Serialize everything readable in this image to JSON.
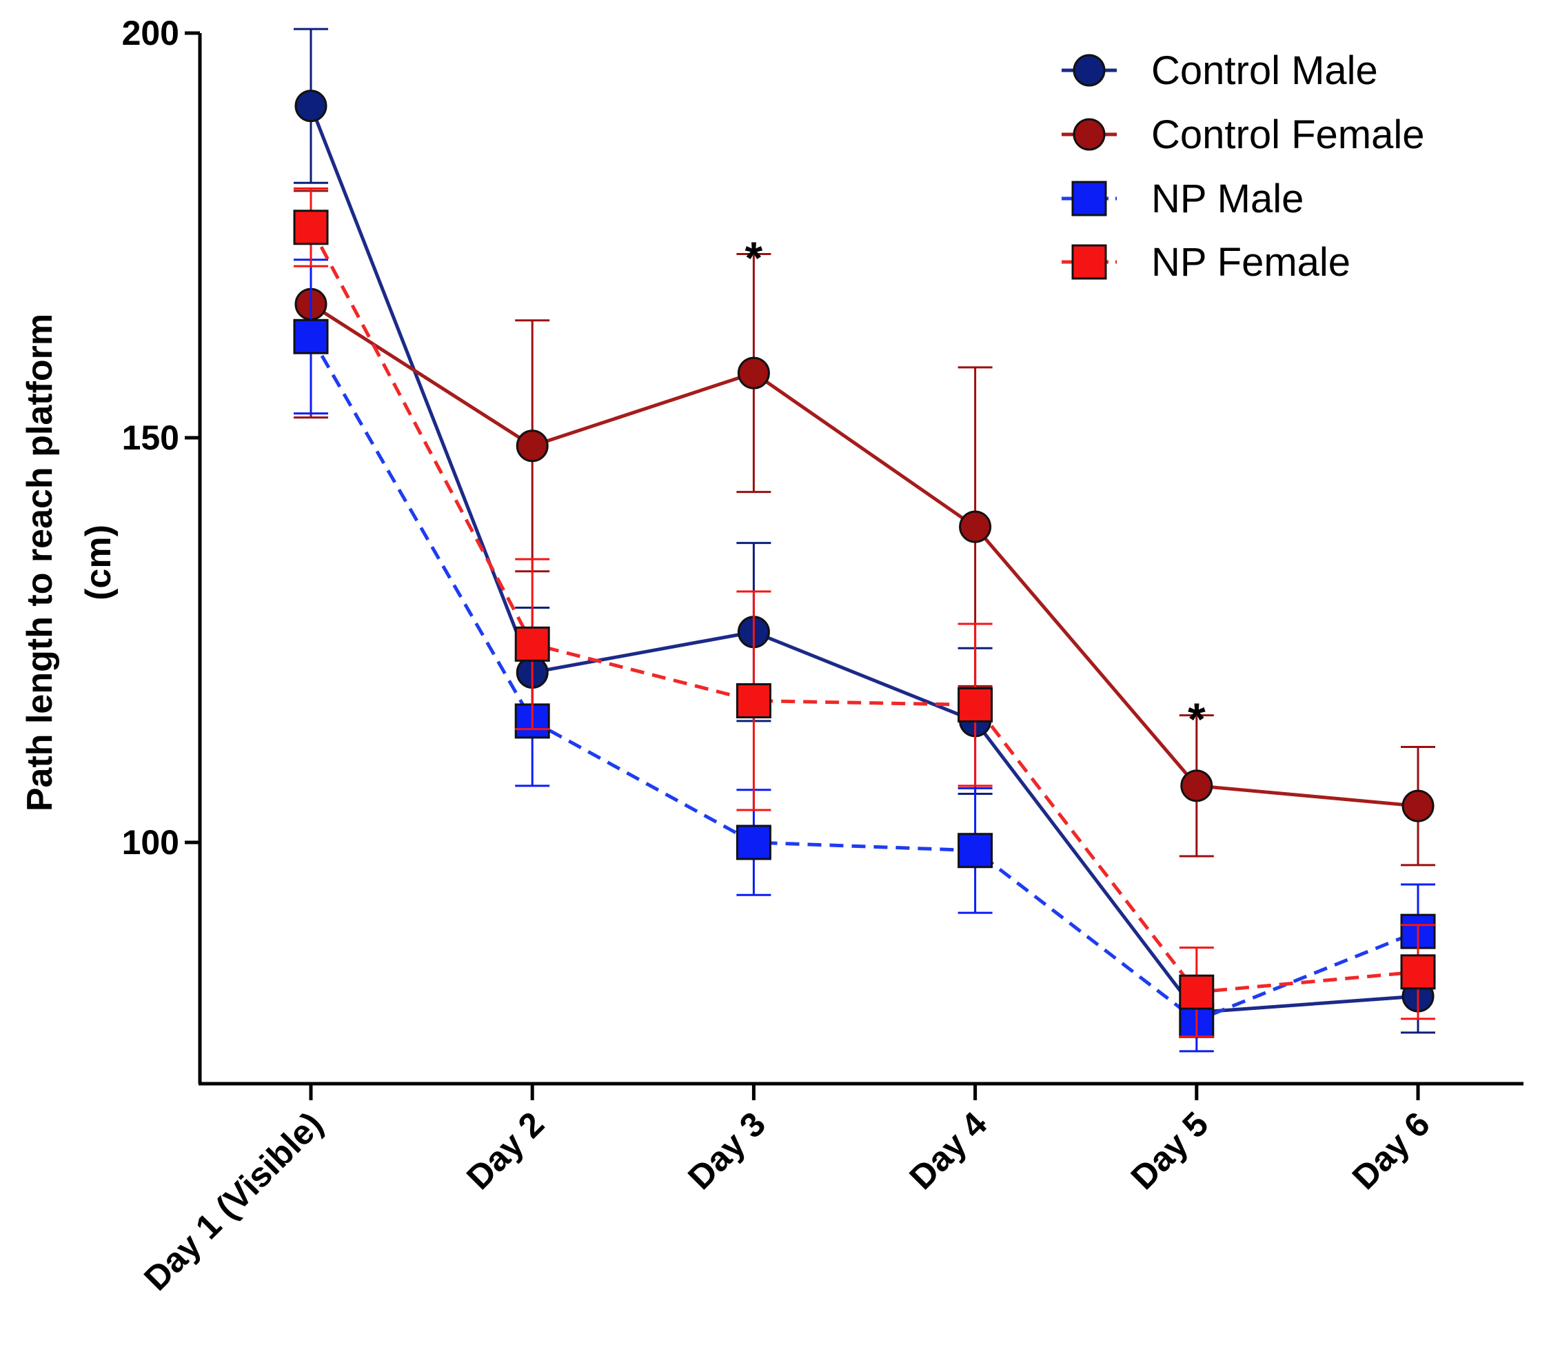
{
  "chart_data": {
    "type": "line",
    "title": "",
    "xlabel": "",
    "ylabel": [
      "Path length to reach platform",
      "(cm)"
    ],
    "categories": [
      "Day 1 (Visible)",
      "Day 2",
      "Day 3",
      "Day 4",
      "Day 5",
      "Day 6"
    ],
    "ylim": [
      70,
      200
    ],
    "yticks": [
      100,
      150,
      200
    ],
    "grid": false,
    "legend_position": "top-right",
    "series": [
      {
        "name": "Control Male",
        "values": [
          191,
          121,
          126,
          115,
          79,
          81
        ],
        "errors": [
          9.5,
          8,
          11,
          9,
          3,
          4.5
        ],
        "color": "#0c1f7a",
        "line_color": "#1c2a88",
        "dash": "solid",
        "marker": "circle"
      },
      {
        "name": "Control Female",
        "values": [
          166.5,
          149,
          158,
          139,
          107,
          104.5
        ],
        "errors": [
          14,
          15.5,
          14.7,
          19.7,
          8.7,
          7.3
        ],
        "color": "#9b1010",
        "line_color": "#a51c1c",
        "dash": "solid",
        "marker": "circle"
      },
      {
        "name": "NP Male",
        "values": [
          162.5,
          115,
          100,
          99,
          78,
          89
        ],
        "errors": [
          9.5,
          8,
          6.5,
          7.7,
          3.8,
          5.8
        ],
        "color": "#0a1ef5",
        "line_color": "#1e3cf0",
        "dash": "dashed",
        "marker": "square"
      },
      {
        "name": "NP Female",
        "values": [
          176,
          124.5,
          117.5,
          117,
          81.5,
          84
        ],
        "errors": [
          4.8,
          10.5,
          13.5,
          10,
          5.5,
          5.8
        ],
        "color": "#f51414",
        "line_color": "#f02828",
        "dash": "dashed",
        "marker": "square"
      }
    ],
    "annotations": [
      {
        "text": "*",
        "category": "Day 3",
        "y": 173
      },
      {
        "text": "*",
        "category": "Day 5",
        "y": 116
      }
    ]
  }
}
